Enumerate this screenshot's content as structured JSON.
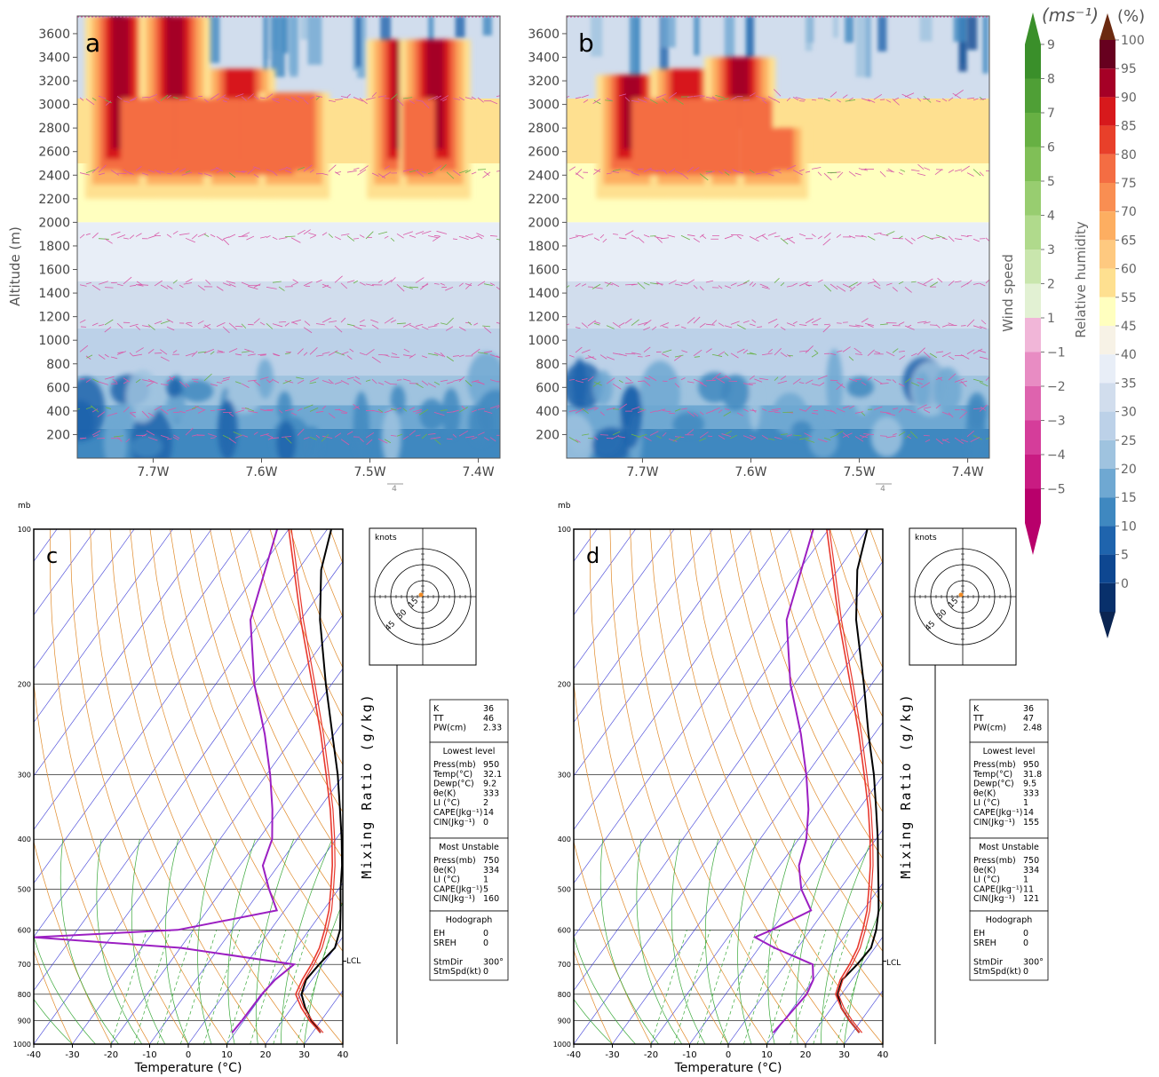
{
  "chart_data": [
    {
      "type": "heatmap",
      "panel_label": "a",
      "ylabel": "Altitude (m)",
      "x_ticks": [
        "7.7W",
        "7.6W",
        "7.5W",
        "7.4W"
      ],
      "y_ticks": [
        "200",
        "400",
        "600",
        "800",
        "1000",
        "1200",
        "1400",
        "1600",
        "1800",
        "2000",
        "2200",
        "2400",
        "2600",
        "2800",
        "3000",
        "3200",
        "3400",
        "3600"
      ],
      "ylim": [
        0,
        3750
      ],
      "xlim": [
        -7.77,
        -7.38
      ],
      "vector_ref_label": "4",
      "rh_columns": [
        {
          "x": -7.73,
          "top": 3750,
          "peak": 95
        },
        {
          "x": -7.68,
          "top": 3750,
          "peak": 95
        },
        {
          "x": -7.62,
          "top": 3300,
          "peak": 88
        },
        {
          "x": -7.57,
          "top": 3100,
          "peak": 85
        },
        {
          "x": -7.47,
          "top": 3550,
          "peak": 95
        },
        {
          "x": -7.44,
          "top": 3550,
          "peak": 95
        }
      ]
    },
    {
      "type": "heatmap",
      "panel_label": "b",
      "x_ticks": [
        "7.7W",
        "7.6W",
        "7.5W",
        "7.4W"
      ],
      "y_ticks": [
        "200",
        "400",
        "600",
        "800",
        "1000",
        "1200",
        "1400",
        "1600",
        "1800",
        "2000",
        "2200",
        "2400",
        "2600",
        "2800",
        "3000",
        "3200",
        "3400",
        "3600"
      ],
      "ylim": [
        0,
        3750
      ],
      "xlim": [
        -7.77,
        -7.38
      ],
      "vector_ref_label": "4",
      "rh_columns": [
        {
          "x": -7.71,
          "top": 3250,
          "peak": 95
        },
        {
          "x": -7.66,
          "top": 3300,
          "peak": 92
        },
        {
          "x": -7.61,
          "top": 3400,
          "peak": 95
        },
        {
          "x": -7.58,
          "top": 2800,
          "peak": 80
        }
      ]
    },
    {
      "type": "line",
      "panel_label": "c",
      "pressure_unit": "mb",
      "xlabel": "Temperature (°C)",
      "side_label": "Mixing Ratio (g/kg)",
      "x_ticks": [
        "-40",
        "-30",
        "-20",
        "-10",
        "0",
        "10",
        "20",
        "30",
        "40"
      ],
      "p_ticks": [
        "100",
        "200",
        "300",
        "400",
        "500",
        "600",
        "700",
        "800",
        "900",
        "1000"
      ],
      "xlim": [
        -40,
        40
      ],
      "plim": [
        1000,
        100
      ],
      "lcl_label": "LCL",
      "series": [
        {
          "color": "#000000",
          "points": [
            [
              950,
              32.1
            ],
            [
              900,
              27.5
            ],
            [
              850,
              23.5
            ],
            [
              800,
              20.0
            ],
            [
              750,
              18.5
            ],
            [
              700,
              19.0
            ],
            [
              650,
              20.0
            ],
            [
              600,
              18.0
            ],
            [
              550,
              14.5
            ],
            [
              500,
              10.5
            ],
            [
              450,
              6.5
            ],
            [
              400,
              1.5
            ],
            [
              350,
              -4.5
            ],
            [
              300,
              -11.5
            ],
            [
              250,
              -20.5
            ],
            [
              200,
              -31.5
            ],
            [
              150,
              -45.0
            ],
            [
              120,
              -54.0
            ],
            [
              100,
              -59.0
            ]
          ]
        },
        {
          "color": "#9b1fc2",
          "points": [
            [
              950,
              9.2
            ],
            [
              900,
              9.5
            ],
            [
              850,
              9.6
            ],
            [
              800,
              9.7
            ],
            [
              750,
              10.5
            ],
            [
              700,
              12.5
            ],
            [
              650,
              -20.0
            ],
            [
              620,
              -60.0
            ],
            [
              600,
              -24.0
            ],
            [
              550,
              -2.0
            ],
            [
              500,
              -8.0
            ],
            [
              450,
              -14.0
            ],
            [
              400,
              -16.5
            ],
            [
              350,
              -22.0
            ],
            [
              300,
              -29.0
            ],
            [
              250,
              -38.0
            ],
            [
              200,
              -50.0
            ],
            [
              150,
              -63.0
            ],
            [
              100,
              -73.0
            ]
          ]
        },
        {
          "color": "#e8382d",
          "points": [
            [
              950,
              32.1
            ],
            [
              900,
              27.0
            ],
            [
              850,
              22.5
            ],
            [
              800,
              18.5
            ],
            [
              750,
              17.5
            ],
            [
              700,
              17.0
            ],
            [
              650,
              16.0
            ],
            [
              600,
              14.0
            ],
            [
              550,
              11.5
            ],
            [
              500,
              8.0
            ],
            [
              450,
              4.0
            ],
            [
              400,
              -1.0
            ],
            [
              350,
              -7.0
            ],
            [
              300,
              -14.5
            ],
            [
              250,
              -23.5
            ],
            [
              200,
              -35.0
            ],
            [
              150,
              -50.0
            ],
            [
              100,
              -70.0
            ]
          ]
        }
      ],
      "hodograph": {
        "unit_label": "knots",
        "rings": [
          "15",
          "30",
          "45"
        ]
      },
      "indices": {
        "k_label": "K",
        "k": "36",
        "tt_label": "TT",
        "tt": "46",
        "pw_label": "PW(cm)",
        "pw": "2.33",
        "lowest_title": "Lowest level",
        "press_label": "Press(mb)",
        "press": "950",
        "temp_label": "Temp(°C)",
        "temp": "32.1",
        "dewp_label": "Dewp(°C)",
        "dewp": "9.2",
        "theta_label": "θe(K)",
        "theta": "333",
        "li_label": "LI (°C)",
        "li": "2",
        "cape_label": "CAPE(Jkg⁻¹)",
        "cape": "14",
        "cin_label": "CIN(Jkg⁻¹)",
        "cin": "0",
        "mu_title": "Most Unstable",
        "mu_press_label": "Press(mb)",
        "mu_press": "750",
        "mu_theta_label": "θe(K)",
        "mu_theta": "334",
        "mu_li_label": "LI (°C)",
        "mu_li": "1",
        "mu_cape_label": "CAPE(Jkg⁻¹)",
        "mu_cape": "5",
        "mu_cin_label": "CIN(Jkg⁻¹)",
        "mu_cin": "160",
        "hodo_title": "Hodograph",
        "eh_label": "EH",
        "eh": "0",
        "sreh_label": "SREH",
        "sreh": "0",
        "stmdir_label": "StmDir",
        "stmdir": "300°",
        "stmspd_label": "StmSpd(kt)",
        "stmspd": "0"
      }
    },
    {
      "type": "line",
      "panel_label": "d",
      "pressure_unit": "mb",
      "xlabel": "Temperature (°C)",
      "side_label": "Mixing Ratio (g/kg)",
      "x_ticks": [
        "-40",
        "-30",
        "-20",
        "-10",
        "0",
        "10",
        "20",
        "30",
        "40"
      ],
      "p_ticks": [
        "100",
        "200",
        "300",
        "400",
        "500",
        "600",
        "700",
        "800",
        "900",
        "1000"
      ],
      "xlim": [
        -40,
        40
      ],
      "plim": [
        1000,
        100
      ],
      "lcl_label": "LCL",
      "series": [
        {
          "color": "#000000",
          "points": [
            [
              950,
              31.8
            ],
            [
              900,
              27.0
            ],
            [
              850,
              22.5
            ],
            [
              800,
              19.0
            ],
            [
              750,
              17.5
            ],
            [
              700,
              18.5
            ],
            [
              650,
              19.0
            ],
            [
              600,
              17.0
            ],
            [
              550,
              14.0
            ],
            [
              500,
              10.0
            ],
            [
              450,
              5.5
            ],
            [
              400,
              0.5
            ],
            [
              350,
              -5.5
            ],
            [
              300,
              -12.5
            ],
            [
              250,
              -21.5
            ],
            [
              200,
              -32.0
            ],
            [
              150,
              -46.0
            ],
            [
              120,
              -55.0
            ],
            [
              100,
              -60.0
            ]
          ]
        },
        {
          "color": "#9b1fc2",
          "points": [
            [
              950,
              9.5
            ],
            [
              900,
              10.0
            ],
            [
              850,
              10.5
            ],
            [
              800,
              11.0
            ],
            [
              750,
              10.0
            ],
            [
              700,
              7.0
            ],
            [
              650,
              -6.0
            ],
            [
              620,
              -13.0
            ],
            [
              600,
              -10.0
            ],
            [
              550,
              -3.5
            ],
            [
              500,
              -10.0
            ],
            [
              450,
              -15.0
            ],
            [
              400,
              -18.0
            ],
            [
              350,
              -23.0
            ],
            [
              300,
              -30.0
            ],
            [
              250,
              -39.0
            ],
            [
              200,
              -51.0
            ],
            [
              150,
              -64.0
            ],
            [
              100,
              -74.0
            ]
          ]
        },
        {
          "color": "#e8382d",
          "points": [
            [
              950,
              31.8
            ],
            [
              900,
              27.0
            ],
            [
              850,
              22.5
            ],
            [
              800,
              18.5
            ],
            [
              750,
              17.0
            ],
            [
              700,
              16.5
            ],
            [
              650,
              15.5
            ],
            [
              600,
              13.5
            ],
            [
              550,
              11.0
            ],
            [
              500,
              7.5
            ],
            [
              450,
              3.5
            ],
            [
              400,
              -1.5
            ],
            [
              350,
              -7.5
            ],
            [
              300,
              -15.0
            ],
            [
              250,
              -24.0
            ],
            [
              200,
              -35.5
            ],
            [
              150,
              -50.5
            ],
            [
              100,
              -70.5
            ]
          ]
        }
      ],
      "hodograph": {
        "unit_label": "knots",
        "rings": [
          "15",
          "30",
          "45"
        ]
      },
      "indices": {
        "k_label": "K",
        "k": "36",
        "tt_label": "TT",
        "tt": "47",
        "pw_label": "PW(cm)",
        "pw": "2.48",
        "lowest_title": "Lowest level",
        "press_label": "Press(mb)",
        "press": "950",
        "temp_label": "Temp(°C)",
        "temp": "31.8",
        "dewp_label": "Dewp(°C)",
        "dewp": "9.5",
        "theta_label": "θe(K)",
        "theta": "333",
        "li_label": "LI (°C)",
        "li": "1",
        "cape_label": "CAPE(Jkg⁻¹)",
        "cape": "14",
        "cin_label": "CIN(Jkg⁻¹)",
        "cin": "155",
        "mu_title": "Most Unstable",
        "mu_press_label": "Press(mb)",
        "mu_press": "750",
        "mu_theta_label": "θe(K)",
        "mu_theta": "334",
        "mu_li_label": "LI (°C)",
        "mu_li": "1",
        "mu_cape_label": "CAPE(Jkg⁻¹)",
        "mu_cape": "11",
        "mu_cin_label": "CIN(Jkg⁻¹)",
        "mu_cin": "121",
        "hodo_title": "Hodograph",
        "eh_label": "EH",
        "eh": "0",
        "sreh_label": "SREH",
        "sreh": "0",
        "stmdir_label": "StmDir",
        "stmdir": "300°",
        "stmspd_label": "StmSpd(kt)",
        "stmspd": "0"
      }
    }
  ],
  "colorbars": {
    "wind": {
      "unit": "(ms⁻¹)",
      "title": "Wind speed",
      "ticks": [
        "9",
        "8",
        "7",
        "6",
        "5",
        "4",
        "3",
        "2",
        "1",
        "−1",
        "−2",
        "−3",
        "−4",
        "−5"
      ],
      "colors": [
        "#3a8f2a",
        "#4f9f36",
        "#67b043",
        "#80bf57",
        "#98cd70",
        "#b0da8c",
        "#c9e6ad",
        "#e2f1d3",
        "#f1b6d8",
        "#e88cc3",
        "#de63ae",
        "#d53d9a",
        "#c91b82",
        "#b8006b"
      ]
    },
    "rh": {
      "unit": "(%)",
      "title": "Relative humidity",
      "ticks": [
        "100",
        "95",
        "90",
        "85",
        "80",
        "75",
        "70",
        "65",
        "60",
        "55",
        "45",
        "40",
        "35",
        "30",
        "25",
        "20",
        "15",
        "10",
        "5",
        "0"
      ],
      "colors": [
        "#67001f",
        "#a50026",
        "#d7191c",
        "#e8402a",
        "#f46d43",
        "#f98e52",
        "#fdae61",
        "#fec980",
        "#fee090",
        "#ffffbf",
        "#f7f2e6",
        "#e8eef7",
        "#d1dded",
        "#bcd1e8",
        "#9fc3df",
        "#6fa8d2",
        "#3f88c0",
        "#1f64ad",
        "#0e4791",
        "#08306b"
      ]
    }
  }
}
